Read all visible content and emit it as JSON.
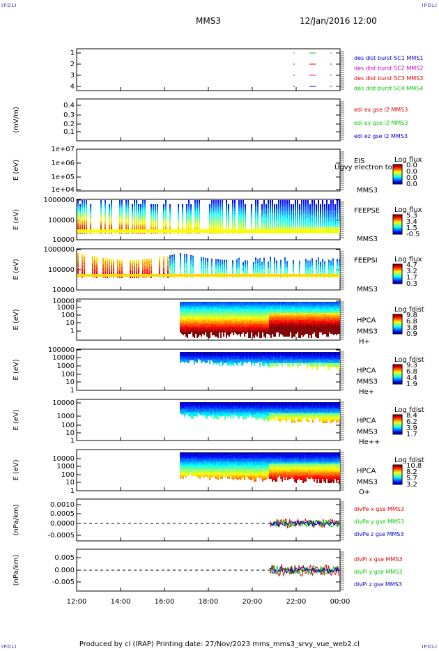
{
  "header": {
    "corner_label": "IPDLI",
    "spacecraft": "MMS3",
    "date_time": "12/Jan/2016 12:00"
  },
  "footer": {
    "text": "Produced by cl (IRAP)   Printing date: 27/Nov/2023   mms_mms3_srvy_vue_web2.cl"
  },
  "colors": {
    "red": "#dd0000",
    "green": "#00cc00",
    "blue": "#0000cc",
    "magenta": "#cc00cc"
  },
  "time_axis": {
    "ticks": [
      "12:00",
      "14:00",
      "16:00",
      "18:00",
      "20:00",
      "22:00",
      "00:00"
    ],
    "start_hour": 12,
    "end_hour": 24
  },
  "chart_data": [
    {
      "type": "scatter",
      "panel": "burst",
      "yticks": [
        "1",
        "2",
        "3",
        "4"
      ],
      "ylim": [
        0.5,
        4.5
      ],
      "legend": [
        {
          "text": "des dist burst SC1 MMS1",
          "color": "#0000cc"
        },
        {
          "text": "des dist burst SC2 MMS2",
          "color": "#cc00cc"
        },
        {
          "text": "des dist burst SC3 MMS3",
          "color": "#dd0000"
        },
        {
          "text": "des dist burst SC4 MMS4",
          "color": "#00cc00"
        }
      ]
    },
    {
      "type": "line",
      "panel": "edi",
      "ylabel": "(mV/m)",
      "yticks": [
        "0.4",
        "0.3",
        "0.2",
        "0.1"
      ],
      "ylim": [
        0.05,
        0.45
      ],
      "legend": [
        {
          "text": "edi ex gse l2 MMS3",
          "color": "#dd0000"
        },
        {
          "text": "edi ey gse l2 MMS3",
          "color": "#00cc00"
        },
        {
          "text": "edi ez gse l2 MMS3",
          "color": "#0000cc"
        }
      ]
    },
    {
      "type": "heatmap",
      "panel": "eis",
      "ylabel": "E (eV)",
      "yticks": [
        "1e+07",
        "1e+06",
        "1e+05",
        "1e+04"
      ],
      "labels": [
        "EIS",
        "MMS3"
      ],
      "overlay_label": "Ugvy electron to",
      "colorbar": {
        "title": "Log flux",
        "ticks": [
          "0.0",
          "0.0",
          "0.0",
          "0.0"
        ]
      }
    },
    {
      "type": "heatmap",
      "panel": "feepse",
      "ylabel": "E (eV)",
      "yticks": [
        "1000000",
        "100000",
        "10000"
      ],
      "labels": [
        "FEEPSE",
        "MMS3"
      ],
      "colorbar": {
        "title": "Log flux",
        "ticks": [
          "5.3",
          "3.4",
          "1.5",
          "-0.5"
        ]
      }
    },
    {
      "type": "heatmap",
      "panel": "feepsi",
      "ylabel": "E (eV)",
      "yticks": [
        "1000000",
        "100000",
        "10000"
      ],
      "labels": [
        "FEEPSI",
        "MMS3"
      ],
      "colorbar": {
        "title": "Log flux",
        "ticks": [
          "4.7",
          "3.2",
          "1.7",
          "0.3"
        ]
      }
    },
    {
      "type": "heatmap",
      "panel": "hpca-h",
      "ylabel": "E (eV)",
      "yticks": [
        "10000",
        "1000",
        "100",
        "10",
        "1"
      ],
      "labels": [
        "HPCA",
        "MMS3",
        "H+"
      ],
      "colorbar": {
        "title": "Log fdist",
        "ticks": [
          "9.8",
          "6.8",
          "3.8",
          "0.9"
        ]
      }
    },
    {
      "type": "heatmap",
      "panel": "hpca-he",
      "ylabel": "E (eV)",
      "yticks": [
        "100000",
        "10000",
        "1000",
        "100",
        "10",
        "1"
      ],
      "labels": [
        "HPCA",
        "MMS3",
        "He+"
      ],
      "colorbar": {
        "title": "Log fdist",
        "ticks": [
          "9.3",
          "6.8",
          "4.4",
          "1.9"
        ]
      }
    },
    {
      "type": "heatmap",
      "panel": "hpca-hepp",
      "ylabel": "E (eV)",
      "yticks": [
        "10000",
        "1000",
        "100",
        "10",
        "1"
      ],
      "labels": [
        "HPCA",
        "MMS3",
        "He++"
      ],
      "colorbar": {
        "title": "Log fdist",
        "ticks": [
          "8.4",
          "6.2",
          "3.9",
          "1.7"
        ]
      }
    },
    {
      "type": "heatmap",
      "panel": "hpca-o",
      "ylabel": "E (eV)",
      "yticks": [
        "10000",
        "1000",
        "100",
        "10",
        "1"
      ],
      "labels": [
        "HPCA",
        "MMS3",
        "O+"
      ],
      "colorbar": {
        "title": "Log fdist",
        "ticks": [
          "10.8",
          "8.2",
          "5.7",
          "3.2"
        ]
      }
    },
    {
      "type": "line",
      "panel": "divpe",
      "ylabel": "(nPa/km)",
      "yticks": [
        "0.0010",
        "0.0005",
        "0.0000",
        "-0.0005"
      ],
      "ylim": [
        -0.0008,
        0.0013
      ],
      "legend": [
        {
          "text": "divPe x gse MMS3",
          "color": "#dd0000"
        },
        {
          "text": "divPe y gse MMS3",
          "color": "#00cc00"
        },
        {
          "text": "divPe z gse MMS3",
          "color": "#0000cc"
        }
      ]
    },
    {
      "type": "line",
      "panel": "divpi",
      "ylabel": "(nPa/km)",
      "yticks": [
        "0.005",
        "0.000",
        "-0.005"
      ],
      "ylim": [
        -0.008,
        0.008
      ],
      "legend": [
        {
          "text": "divPi x gse MMS3",
          "color": "#dd0000"
        },
        {
          "text": "divPi y gse MMS3",
          "color": "#00cc00"
        },
        {
          "text": "divPi z gse MMS3",
          "color": "#0000cc"
        }
      ]
    }
  ]
}
